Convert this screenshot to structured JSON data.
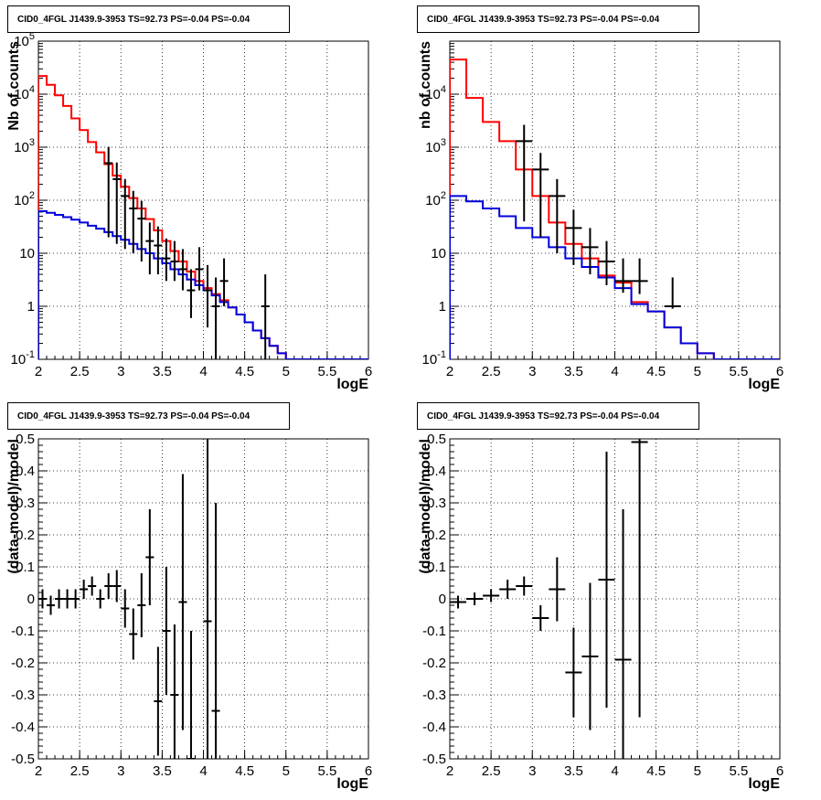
{
  "chart_data": [
    {
      "type": "line",
      "title": "CID0_4FGL J1439.9-3953 TS=92.73 PS=-0.04 PS=-0.04",
      "xlabel": "logE",
      "ylabel": "Nb of counts",
      "xlim": [
        2,
        6
      ],
      "ylim": [
        0.1,
        100000
      ],
      "yscale": "log",
      "grid": true,
      "xticks": [
        "2",
        "2.5",
        "3",
        "3.5",
        "4",
        "4.5",
        "5",
        "5.5",
        "6"
      ],
      "yticks": [
        "10^-1",
        "1",
        "10",
        "10^2",
        "10^3",
        "10^4",
        "10^5"
      ],
      "bin_edges": [
        2,
        2.1,
        2.2,
        2.3,
        2.4,
        2.5,
        2.6,
        2.7,
        2.8,
        2.9,
        3,
        3.1,
        3.2,
        3.3,
        3.4,
        3.5,
        3.6,
        3.7,
        3.8,
        3.9,
        4,
        4.1,
        4.2,
        4.3,
        4.4,
        4.5,
        4.6,
        4.7,
        4.8,
        4.9,
        5,
        5.1,
        5.2,
        5.3,
        5.4,
        5.5,
        5.6,
        5.7,
        5.8,
        5.9,
        6
      ],
      "series": [
        {
          "color": "#ff0000",
          "kind": "step",
          "values": [
            22000,
            15000,
            9500,
            6000,
            3500,
            2100,
            1250,
            800,
            480,
            290,
            180,
            110,
            70,
            44,
            27,
            17,
            11,
            7,
            4.5,
            3,
            2.2,
            1.7,
            1.3,
            0.95,
            0.7,
            0.5,
            0.35,
            0.25,
            0.18,
            0.13,
            0.1,
            0.1,
            0.1,
            0.1,
            0.1,
            0.1,
            0.1,
            0.1,
            0.1,
            0.1
          ]
        },
        {
          "color": "#0000dd",
          "kind": "step",
          "values": [
            62,
            58,
            53,
            48,
            43,
            38,
            33,
            29,
            25,
            21,
            18,
            15,
            12,
            10,
            8,
            6.5,
            5,
            4,
            3.2,
            2.5,
            2,
            1.6,
            1.2,
            0.95,
            0.7,
            0.5,
            0.35,
            0.25,
            0.18,
            0.13,
            0.1,
            0.1,
            0.1,
            0.1,
            0.1,
            0.1,
            0.1,
            0.1,
            0.1,
            0.1
          ]
        },
        {
          "color": "#000000",
          "kind": "points",
          "x": [
            2.85,
            2.95,
            3.05,
            3.15,
            3.25,
            3.35,
            3.45,
            3.55,
            3.65,
            3.75,
            3.85,
            3.95,
            4.05,
            4.15,
            4.25,
            4.75
          ],
          "values": [
            500,
            250,
            120,
            70,
            45,
            17,
            14,
            8,
            7,
            5,
            2,
            5,
            2,
            1,
            3,
            1
          ],
          "yerr_low": [
            480,
            235,
            108,
            60,
            38,
            13,
            10,
            5,
            4,
            3,
            1.4,
            3,
            1.6,
            0.9,
            2,
            0.9
          ],
          "yerr_high": [
            520,
            265,
            132,
            80,
            52,
            21,
            18,
            11,
            10,
            7,
            3,
            8,
            4,
            2.5,
            5,
            3
          ]
        }
      ]
    },
    {
      "type": "line",
      "title": "CID0_4FGL J1439.9-3953 TS=92.73 PS=-0.04 PS=-0.04",
      "xlabel": "logE",
      "ylabel": "nb of counts",
      "xlim": [
        2,
        6
      ],
      "ylim": [
        0.1,
        100000
      ],
      "yscale": "log",
      "grid": true,
      "xticks": [
        "2",
        "2.5",
        "3",
        "3.5",
        "4",
        "4.5",
        "5",
        "5.5",
        "6"
      ],
      "yticks": [
        "10^-1",
        "1",
        "10",
        "10^2",
        "10^3",
        "10^4"
      ],
      "bin_edges": [
        2,
        2.2,
        2.4,
        2.6,
        2.8,
        3,
        3.2,
        3.4,
        3.6,
        3.8,
        4,
        4.2,
        4.4,
        4.6,
        4.8,
        5,
        5.2,
        5.4,
        5.6,
        5.8,
        6
      ],
      "series": [
        {
          "color": "#ff0000",
          "kind": "step",
          "values": [
            45000,
            8500,
            3000,
            1300,
            380,
            120,
            38,
            15,
            8,
            3.8,
            2.8,
            1.2,
            0.8,
            0.4,
            0.2,
            0.13,
            0.1,
            0.1,
            0.1,
            0.1
          ]
        },
        {
          "color": "#0000dd",
          "kind": "step",
          "values": [
            120,
            95,
            70,
            50,
            30,
            20,
            13,
            8,
            5.5,
            3.5,
            2.2,
            1.1,
            0.8,
            0.4,
            0.2,
            0.13,
            0.1,
            0.1,
            0.1,
            0.1
          ]
        },
        {
          "color": "#000000",
          "kind": "points",
          "x": [
            2.9,
            3.1,
            3.3,
            3.5,
            3.7,
            3.9,
            4.1,
            4.3,
            4.5,
            4.7
          ],
          "values": [
            1300,
            380,
            120,
            30,
            13,
            7,
            3,
            3,
            0,
            1
          ],
          "yerr_low": [
            1260,
            360,
            110,
            24,
            9,
            4.5,
            1.2,
            1.3,
            0,
            0.1
          ],
          "yerr_high": [
            1340,
            400,
            130,
            36,
            17,
            10,
            5,
            5,
            0,
            2.5
          ]
        }
      ]
    },
    {
      "type": "scatter",
      "title": "CID0_4FGL J1439.9-3953 TS=92.73 PS=-0.04 PS=-0.04",
      "xlabel": "logE",
      "ylabel": "(data-model)/model",
      "xlim": [
        2,
        6
      ],
      "ylim": [
        -0.5,
        0.5
      ],
      "grid": true,
      "xticks": [
        "2",
        "2.5",
        "3",
        "3.5",
        "4",
        "4.5",
        "5",
        "5.5",
        "6"
      ],
      "yticks": [
        "-0.5",
        "-0.4",
        "-0.3",
        "-0.2",
        "-0.1",
        "0",
        "0.1",
        "0.2",
        "0.3",
        "0.4",
        "0.5"
      ],
      "series": [
        {
          "color": "#000000",
          "kind": "points",
          "x": [
            2.05,
            2.15,
            2.25,
            2.35,
            2.45,
            2.55,
            2.65,
            2.75,
            2.85,
            2.95,
            3.05,
            3.15,
            3.25,
            3.35,
            3.45,
            3.55,
            3.65,
            3.75,
            3.85,
            4.05,
            4.15
          ],
          "values": [
            0.0,
            -0.02,
            0.0,
            0.0,
            0.0,
            0.03,
            0.04,
            0.0,
            0.04,
            0.04,
            -0.03,
            -0.11,
            -0.02,
            0.13,
            -0.32,
            -0.1,
            -0.3,
            -0.01,
            -0.5,
            -0.07,
            -0.35
          ],
          "yerr": [
            0.03,
            0.03,
            0.03,
            0.03,
            0.03,
            0.03,
            0.03,
            0.03,
            0.04,
            0.05,
            0.06,
            0.08,
            0.1,
            0.15,
            0.17,
            0.2,
            0.22,
            0.4,
            0.4,
            0.6,
            0.65
          ]
        }
      ]
    },
    {
      "type": "scatter",
      "title": "CID0_4FGL J1439.9-3953 TS=92.73 PS=-0.04 PS=-0.04",
      "xlabel": "logE",
      "ylabel": "(data-model)/model",
      "xlim": [
        2,
        6
      ],
      "ylim": [
        -0.5,
        0.5
      ],
      "grid": true,
      "xticks": [
        "2",
        "2.5",
        "3",
        "3.5",
        "4",
        "4.5",
        "5",
        "5.5",
        "6"
      ],
      "yticks": [
        "-0.5",
        "-0.4",
        "-0.3",
        "-0.2",
        "-0.1",
        "0",
        "0.1",
        "0.2",
        "0.3",
        "0.4",
        "0.5"
      ],
      "series": [
        {
          "color": "#000000",
          "kind": "points",
          "x": [
            2.1,
            2.3,
            2.5,
            2.7,
            2.9,
            3.1,
            3.3,
            3.5,
            3.7,
            3.9,
            4.1,
            4.3
          ],
          "values": [
            -0.01,
            0.0,
            0.01,
            0.03,
            0.04,
            -0.06,
            0.03,
            -0.23,
            -0.18,
            0.06,
            -0.19,
            0.49
          ],
          "yerr": [
            0.02,
            0.02,
            0.02,
            0.03,
            0.03,
            0.04,
            0.1,
            0.14,
            0.23,
            0.4,
            0.47,
            0.86
          ]
        }
      ]
    }
  ]
}
